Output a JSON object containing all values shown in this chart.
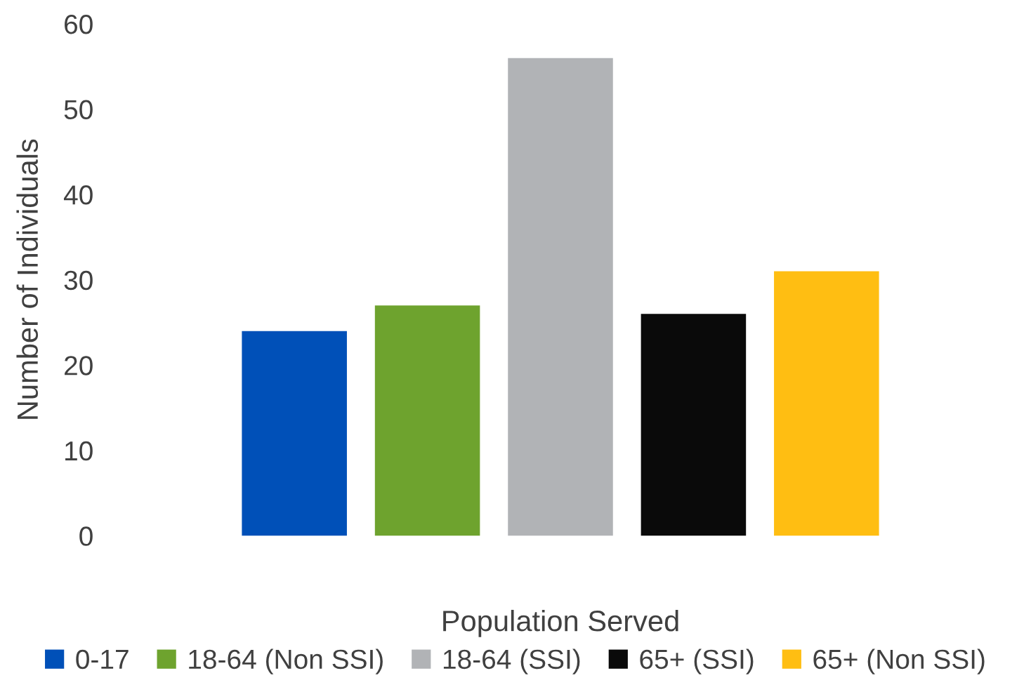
{
  "chart_data": {
    "type": "bar",
    "xlabel": "Population Served",
    "ylabel": "Number of Individuals",
    "categories": [
      null
    ],
    "series": [
      {
        "name": "0-17",
        "color": "#0050b8",
        "values": [
          24
        ]
      },
      {
        "name": "18-64 (Non SSI)",
        "color": "#6ea32e",
        "values": [
          27
        ]
      },
      {
        "name": "18-64 (SSI)",
        "color": "#b1b3b6",
        "values": [
          56
        ]
      },
      {
        "name": "65+ (SSI)",
        "color": "#0a0a0a",
        "values": [
          26
        ]
      },
      {
        "name": "65+ (Non SSI)",
        "color": "#ffbe12",
        "values": [
          31
        ]
      }
    ],
    "ylim": [
      0,
      60
    ],
    "yticks": [
      0,
      10,
      20,
      30,
      40,
      50,
      60
    ],
    "grid": false,
    "legend": "bottom"
  }
}
